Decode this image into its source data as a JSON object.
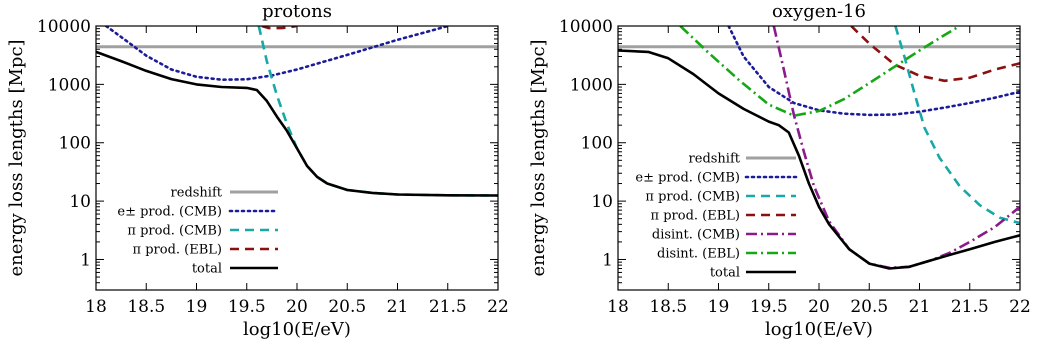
{
  "chart_data": [
    {
      "type": "line",
      "title": "protons",
      "xlabel": "log10(E/eV)",
      "ylabel": "energy loss lengths [Mpc]",
      "xlim": [
        18,
        22
      ],
      "ylim": [
        0.3,
        10000
      ],
      "yscale": "log",
      "grid": false,
      "legend_position": "bottom-right",
      "xticks": [
        "18",
        "18.5",
        "19",
        "19.5",
        "20",
        "20.5",
        "21",
        "21.5",
        "22"
      ],
      "yticks": [
        "1",
        "10",
        "100",
        "1000",
        "10000"
      ],
      "series": [
        {
          "name": "redshift",
          "color": "#a0a0a0",
          "dash": "solid",
          "points": [
            [
              18,
              4400
            ],
            [
              22,
              4400
            ]
          ]
        },
        {
          "name": "e± prod. (CMB)",
          "color": "#1c1c9a",
          "dash": "dot",
          "points": [
            [
              18.1,
              10000
            ],
            [
              18.3,
              5600
            ],
            [
              18.5,
              3100
            ],
            [
              18.75,
              1800
            ],
            [
              19.0,
              1350
            ],
            [
              19.25,
              1200
            ],
            [
              19.5,
              1220
            ],
            [
              19.75,
              1420
            ],
            [
              20.0,
              1800
            ],
            [
              20.25,
              2400
            ],
            [
              20.5,
              3200
            ],
            [
              20.75,
              4300
            ],
            [
              21.0,
              5800
            ],
            [
              21.25,
              7600
            ],
            [
              21.5,
              10000
            ]
          ]
        },
        {
          "name": "π prod. (CMB)",
          "color": "#18a8a8",
          "dash": "dash",
          "points": [
            [
              19.62,
              10000
            ],
            [
              19.7,
              2500
            ],
            [
              19.8,
              650
            ],
            [
              19.9,
              210
            ],
            [
              20.0,
              80
            ],
            [
              20.1,
              40
            ],
            [
              20.2,
              26
            ],
            [
              20.3,
              20
            ],
            [
              20.5,
              15.5
            ],
            [
              20.75,
              13.8
            ],
            [
              21.0,
              13.0
            ],
            [
              21.5,
              12.6
            ],
            [
              22.0,
              12.5
            ]
          ]
        },
        {
          "name": "π prod. (EBL)",
          "color": "#8b1010",
          "dash": "dash",
          "points": [
            [
              19.65,
              10000
            ],
            [
              19.72,
              9200
            ],
            [
              19.85,
              9200
            ],
            [
              20.0,
              10000
            ]
          ]
        },
        {
          "name": "total",
          "color": "#000000",
          "dash": "solid",
          "points": [
            [
              18.0,
              3600
            ],
            [
              18.25,
              2500
            ],
            [
              18.5,
              1700
            ],
            [
              18.75,
              1230
            ],
            [
              19.0,
              1000
            ],
            [
              19.25,
              900
            ],
            [
              19.5,
              870
            ],
            [
              19.6,
              800
            ],
            [
              19.7,
              520
            ],
            [
              19.8,
              280
            ],
            [
              19.9,
              160
            ],
            [
              20.0,
              80
            ],
            [
              20.1,
              40
            ],
            [
              20.2,
              26
            ],
            [
              20.3,
              20
            ],
            [
              20.5,
              15.5
            ],
            [
              20.75,
              13.8
            ],
            [
              21.0,
              13.0
            ],
            [
              21.5,
              12.6
            ],
            [
              22.0,
              12.5
            ]
          ]
        }
      ]
    },
    {
      "type": "line",
      "title": "oxygen-16",
      "xlabel": "log10(E/eV)",
      "ylabel": "energy loss lengths [Mpc]",
      "xlim": [
        18,
        22
      ],
      "ylim": [
        0.3,
        10000
      ],
      "yscale": "log",
      "grid": false,
      "legend_position": "bottom-center",
      "xticks": [
        "18",
        "18.5",
        "19",
        "19.5",
        "20",
        "20.5",
        "21",
        "21.5",
        "22"
      ],
      "yticks": [
        "1",
        "10",
        "100",
        "1000",
        "10000"
      ],
      "series": [
        {
          "name": "redshift",
          "color": "#a0a0a0",
          "dash": "solid",
          "points": [
            [
              18,
              4400
            ],
            [
              22,
              4400
            ]
          ]
        },
        {
          "name": "e± prod. (CMB)",
          "color": "#1c1c9a",
          "dash": "dot",
          "points": [
            [
              19.1,
              10000
            ],
            [
              19.25,
              3000
            ],
            [
              19.5,
              900
            ],
            [
              19.75,
              480
            ],
            [
              20.0,
              360
            ],
            [
              20.25,
              315
            ],
            [
              20.5,
              300
            ],
            [
              20.75,
              305
            ],
            [
              21.0,
              340
            ],
            [
              21.25,
              400
            ],
            [
              21.5,
              480
            ],
            [
              21.75,
              590
            ],
            [
              22.0,
              750
            ]
          ]
        },
        {
          "name": "π prod. (CMB)",
          "color": "#18a8a8",
          "dash": "dash",
          "points": [
            [
              20.76,
              10000
            ],
            [
              20.85,
              3000
            ],
            [
              20.95,
              700
            ],
            [
              21.05,
              180
            ],
            [
              21.2,
              55
            ],
            [
              21.4,
              18
            ],
            [
              21.6,
              8.5
            ],
            [
              21.8,
              5.2
            ],
            [
              22.0,
              4.2
            ]
          ]
        },
        {
          "name": "π prod. (EBL)",
          "color": "#8b1010",
          "dash": "dash",
          "points": [
            [
              20.32,
              10000
            ],
            [
              20.5,
              5000
            ],
            [
              20.75,
              2200
            ],
            [
              21.0,
              1400
            ],
            [
              21.25,
              1150
            ],
            [
              21.5,
              1300
            ],
            [
              21.75,
              1800
            ],
            [
              22.0,
              2300
            ]
          ]
        },
        {
          "name": "disint. (CMB)",
          "color": "#8b1a8b",
          "dash": "dashdot",
          "points": [
            [
              19.55,
              10000
            ],
            [
              19.65,
              1800
            ],
            [
              19.75,
              300
            ],
            [
              19.85,
              70
            ],
            [
              19.95,
              18
            ],
            [
              20.1,
              4.5
            ],
            [
              20.3,
              1.5
            ],
            [
              20.5,
              0.85
            ],
            [
              20.7,
              0.72
            ],
            [
              20.9,
              0.75
            ],
            [
              21.1,
              0.95
            ],
            [
              21.3,
              1.3
            ],
            [
              21.5,
              2.0
            ],
            [
              21.75,
              3.6
            ],
            [
              22.0,
              8.0
            ]
          ]
        },
        {
          "name": "disint. (EBL)",
          "color": "#14a814",
          "dash": "dashdot",
          "points": [
            [
              18.62,
              10000
            ],
            [
              18.9,
              3500
            ],
            [
              19.2,
              1200
            ],
            [
              19.5,
              450
            ],
            [
              19.75,
              290
            ],
            [
              20.0,
              350
            ],
            [
              20.25,
              560
            ],
            [
              20.5,
              1050
            ],
            [
              20.75,
              2000
            ],
            [
              21.0,
              3800
            ],
            [
              21.25,
              7000
            ],
            [
              21.4,
              10000
            ]
          ]
        },
        {
          "name": "total",
          "color": "#000000",
          "dash": "solid",
          "points": [
            [
              18.0,
              3800
            ],
            [
              18.3,
              3600
            ],
            [
              18.5,
              2800
            ],
            [
              18.75,
              1500
            ],
            [
              19.0,
              700
            ],
            [
              19.25,
              380
            ],
            [
              19.5,
              230
            ],
            [
              19.6,
              200
            ],
            [
              19.7,
              150
            ],
            [
              19.8,
              60
            ],
            [
              19.9,
              20
            ],
            [
              20.0,
              8
            ],
            [
              20.1,
              4
            ],
            [
              20.3,
              1.5
            ],
            [
              20.5,
              0.85
            ],
            [
              20.7,
              0.7
            ],
            [
              20.9,
              0.75
            ],
            [
              21.1,
              0.95
            ],
            [
              21.3,
              1.2
            ],
            [
              21.5,
              1.5
            ],
            [
              21.75,
              2.0
            ],
            [
              22.0,
              2.6
            ]
          ]
        }
      ]
    }
  ]
}
